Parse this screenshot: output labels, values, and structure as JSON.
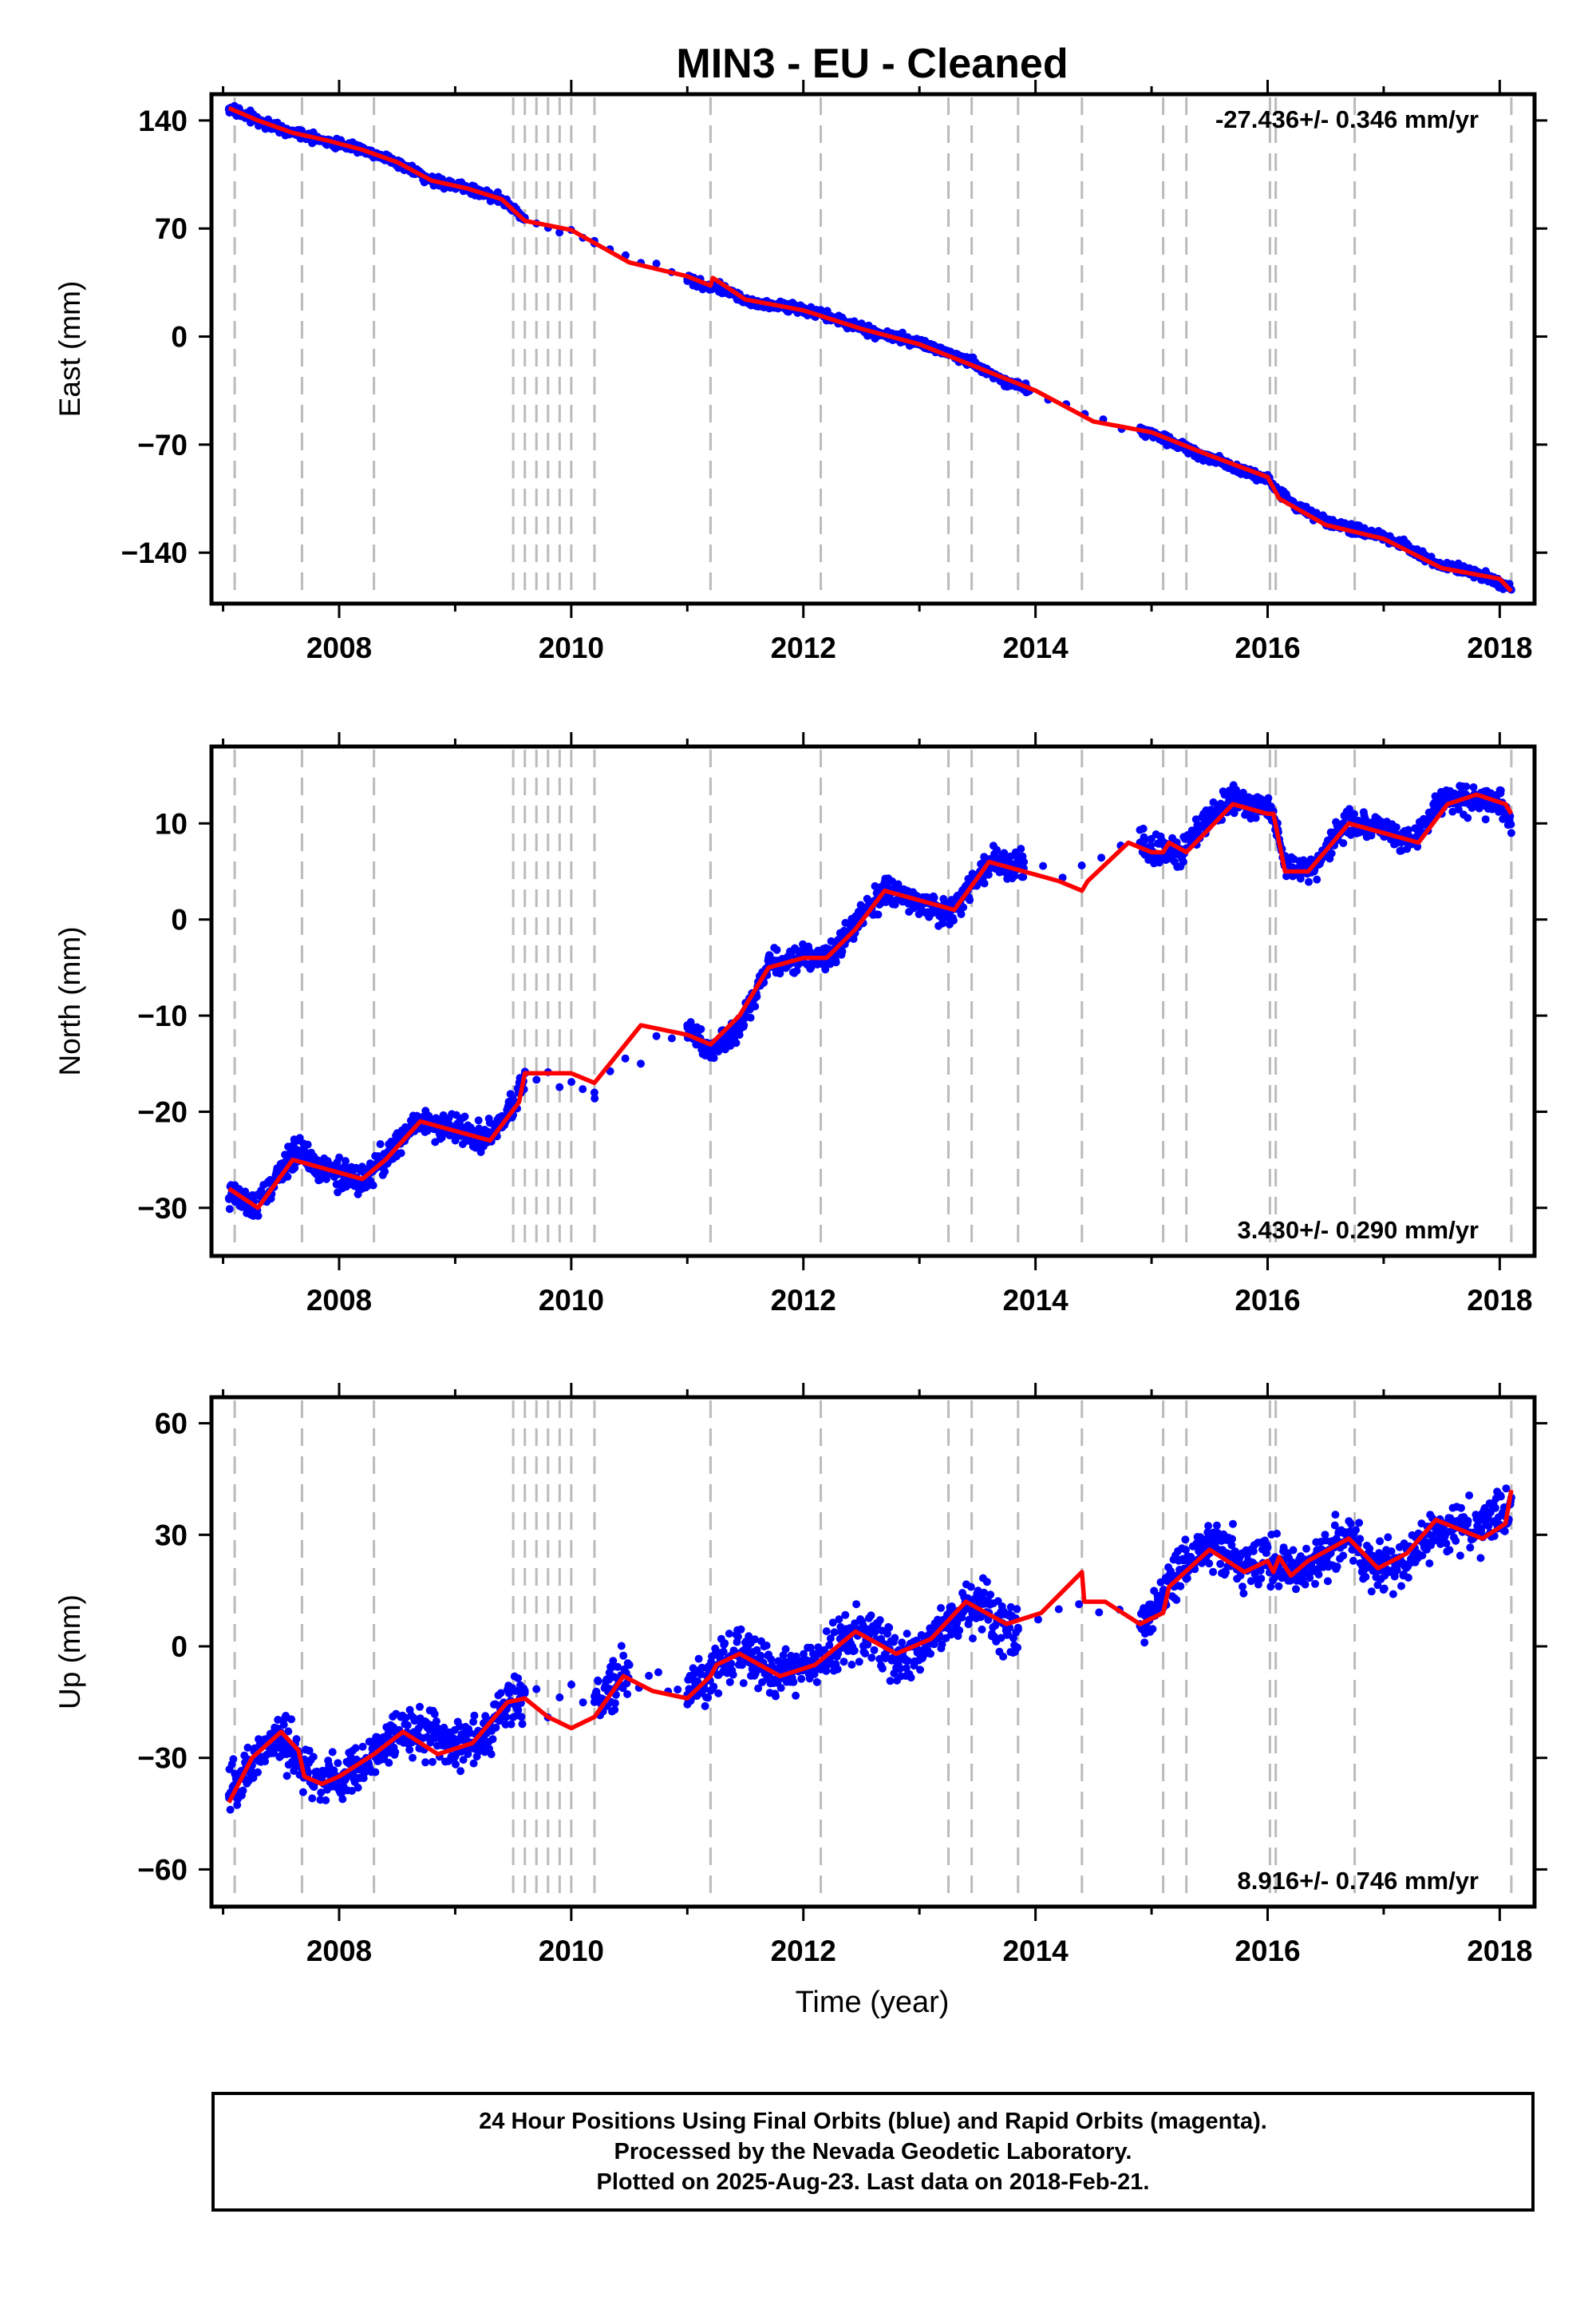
{
  "title": "MIN3  - EU - Cleaned",
  "xlabel": "Time (year)",
  "footer": [
    "24 Hour Positions Using Final Orbits (blue) and Rapid Orbits (magenta).",
    "Processed by the Nevada Geodetic Laboratory.",
    "Plotted on 2025-Aug-23. Last data on 2018-Feb-21."
  ],
  "colors": {
    "points": "#0000ff",
    "model": "#ff0000",
    "events": "#bbbbbb"
  },
  "chart_data": [
    {
      "type": "scatter",
      "ylabel": "East (mm)",
      "xlim": [
        2006.9,
        2018.3
      ],
      "ylim": [
        -173,
        157
      ],
      "yticks": [
        140,
        70,
        0,
        -70,
        -140
      ],
      "yticklabels": [
        "140",
        "70",
        "0",
        "−70",
        "−140"
      ],
      "xticks": [
        2008,
        2010,
        2012,
        2014,
        2016,
        2018
      ],
      "xticklabels": [
        "2008",
        "2010",
        "2012",
        "2014",
        "2016",
        "2018"
      ],
      "rate": "-27.436+/- 0.346 mm/yr",
      "rate_position": "top-right",
      "grid": false,
      "series": [
        {
          "kind": "points",
          "x": [
            2007.05,
            2007.3,
            2007.6,
            2007.9,
            2008.2,
            2008.5,
            2008.8,
            2009.1,
            2009.4,
            2009.6,
            2010.2,
            2011.0,
            2011.3,
            2011.6,
            2011.9,
            2012.2,
            2012.5,
            2012.8,
            2013.1,
            2013.4,
            2013.7,
            2013.95,
            2014.9,
            2015.2,
            2015.5,
            2015.8,
            2016.0,
            2016.3,
            2016.6,
            2016.9,
            2017.2,
            2017.5,
            2017.8,
            2018.1
          ],
          "y": [
            147,
            140,
            132,
            126,
            122,
            113,
            101,
            96,
            89,
            77,
            62,
            37,
            28,
            21,
            19,
            14,
            5,
            0,
            -5,
            -14,
            -29,
            -35,
            -60,
            -70,
            -80,
            -88,
            -92,
            -110,
            -122,
            -126,
            -134,
            -148,
            -152,
            -164
          ]
        },
        {
          "kind": "model",
          "x": [
            2007.05,
            2007.3,
            2007.6,
            2007.9,
            2008.2,
            2008.5,
            2008.8,
            2009.1,
            2009.4,
            2009.6,
            2010.0,
            2010.5,
            2011.0,
            2011.2,
            2011.22,
            2011.5,
            2012.0,
            2012.5,
            2013.0,
            2013.5,
            2014.0,
            2014.5,
            2015.0,
            2015.5,
            2016.0,
            2016.1,
            2016.5,
            2017.0,
            2017.5,
            2018.0,
            2018.1
          ],
          "y": [
            148,
            140,
            132,
            127,
            121,
            113,
            101,
            96,
            89,
            75,
            69,
            48,
            39,
            33,
            38,
            24,
            17,
            5,
            -5,
            -20,
            -35,
            -55,
            -62,
            -77,
            -91,
            -105,
            -122,
            -131,
            -150,
            -157,
            -165
          ]
        }
      ]
    },
    {
      "type": "scatter",
      "ylabel": "North (mm)",
      "xlim": [
        2006.9,
        2018.3
      ],
      "ylim": [
        -35,
        18
      ],
      "yticks": [
        10,
        0,
        -10,
        -20,
        -30
      ],
      "yticklabels": [
        "10",
        "0",
        "−10",
        "−20",
        "−30"
      ],
      "xticks": [
        2008,
        2010,
        2012,
        2014,
        2016,
        2018
      ],
      "xticklabels": [
        "2008",
        "2010",
        "2012",
        "2014",
        "2016",
        "2018"
      ],
      "rate": "3.430+/- 0.290 mm/yr",
      "rate_position": "bottom-right",
      "grid": false,
      "series": [
        {
          "kind": "points",
          "x": [
            2007.05,
            2007.25,
            2007.45,
            2007.65,
            2007.85,
            2008.05,
            2008.25,
            2008.45,
            2008.65,
            2008.85,
            2009.05,
            2009.25,
            2009.45,
            2009.6,
            2010.2,
            2011.0,
            2011.2,
            2011.45,
            2011.7,
            2011.95,
            2012.2,
            2012.45,
            2012.7,
            2012.95,
            2013.2,
            2013.45,
            2013.7,
            2013.9,
            2014.9,
            2015.2,
            2015.45,
            2015.7,
            2016.0,
            2016.15,
            2016.4,
            2016.65,
            2016.9,
            2017.15,
            2017.5,
            2017.75,
            2018.0,
            2018.1
          ],
          "y": [
            -29,
            -30,
            -27,
            -23,
            -26,
            -27,
            -27,
            -24,
            -21,
            -21,
            -22,
            -23,
            -20,
            -16,
            -18,
            -11,
            -14,
            -12,
            -4,
            -4,
            -4,
            0,
            3,
            2,
            0,
            4,
            6,
            6,
            8,
            6,
            11,
            13,
            12,
            6,
            5,
            10,
            10,
            8,
            13,
            12,
            12,
            9
          ]
        },
        {
          "kind": "model",
          "x": [
            2007.05,
            2007.3,
            2007.6,
            2007.9,
            2008.2,
            2008.4,
            2008.7,
            2009.0,
            2009.3,
            2009.55,
            2009.6,
            2010.0,
            2010.2,
            2010.6,
            2011.0,
            2011.2,
            2011.45,
            2011.7,
            2012.0,
            2012.2,
            2012.45,
            2012.7,
            2013.0,
            2013.3,
            2013.6,
            2013.9,
            2014.2,
            2014.4,
            2014.45,
            2014.8,
            2015.0,
            2015.1,
            2015.15,
            2015.3,
            2015.7,
            2016.0,
            2016.05,
            2016.15,
            2016.35,
            2016.7,
            2017.0,
            2017.3,
            2017.55,
            2017.8,
            2018.05,
            2018.1
          ],
          "y": [
            -28,
            -30,
            -25,
            -26,
            -27,
            -25,
            -21,
            -22,
            -23,
            -19,
            -16,
            -16,
            -17,
            -11,
            -12,
            -13,
            -10,
            -5,
            -4,
            -4,
            -1,
            3,
            2,
            1,
            6,
            5,
            4,
            3,
            4,
            8,
            7,
            7,
            8,
            7,
            12,
            11,
            11,
            5,
            5,
            10,
            9,
            8,
            12,
            13,
            12,
            11
          ]
        }
      ]
    },
    {
      "type": "scatter",
      "ylabel": "Up (mm)",
      "xlim": [
        2006.9,
        2018.3
      ],
      "ylim": [
        -70,
        67
      ],
      "yticks": [
        60,
        30,
        0,
        -30,
        -60
      ],
      "yticklabels": [
        "60",
        "30",
        "0",
        "−30",
        "−60"
      ],
      "xticks": [
        2008,
        2010,
        2012,
        2014,
        2016,
        2018
      ],
      "xticklabels": [
        "2008",
        "2010",
        "2012",
        "2014",
        "2016",
        "2018"
      ],
      "rate": "8.916+/- 0.746 mm/yr",
      "rate_position": "bottom-right",
      "grid": false,
      "series": [
        {
          "kind": "points",
          "x": [
            2007.05,
            2007.25,
            2007.45,
            2007.65,
            2007.85,
            2008.05,
            2008.25,
            2008.45,
            2008.65,
            2008.85,
            2009.05,
            2009.25,
            2009.45,
            2009.6,
            2010.2,
            2010.5,
            2011.0,
            2011.2,
            2011.4,
            2011.6,
            2011.8,
            2012.0,
            2012.2,
            2012.4,
            2012.6,
            2012.8,
            2013.0,
            2013.2,
            2013.4,
            2013.6,
            2013.85,
            2014.9,
            2015.1,
            2015.3,
            2015.5,
            2015.7,
            2015.9,
            2016.1,
            2016.3,
            2016.5,
            2016.7,
            2016.9,
            2017.1,
            2017.5,
            2017.7,
            2017.9,
            2018.1
          ],
          "y": [
            -40,
            -32,
            -26,
            -30,
            -36,
            -36,
            -32,
            -25,
            -20,
            -22,
            -28,
            -24,
            -16,
            -12,
            -15,
            -5,
            -13,
            -6,
            -2,
            -4,
            -8,
            -5,
            -3,
            3,
            4,
            -4,
            -2,
            5,
            10,
            9,
            5,
            6,
            15,
            23,
            28,
            25,
            20,
            22,
            18,
            24,
            30,
            22,
            20,
            30,
            32,
            35,
            40
          ]
        },
        {
          "kind": "model",
          "x": [
            2007.05,
            2007.25,
            2007.5,
            2007.65,
            2007.7,
            2007.85,
            2008.0,
            2008.3,
            2008.55,
            2008.85,
            2009.15,
            2009.45,
            2009.6,
            2009.8,
            2010.0,
            2010.2,
            2010.45,
            2010.7,
            2011.0,
            2011.2,
            2011.25,
            2011.45,
            2011.8,
            2012.1,
            2012.45,
            2012.8,
            2013.1,
            2013.4,
            2013.75,
            2014.05,
            2014.4,
            2014.42,
            2014.6,
            2014.9,
            2015.1,
            2015.15,
            2015.5,
            2015.8,
            2016.0,
            2016.05,
            2016.1,
            2016.2,
            2016.35,
            2016.7,
            2016.95,
            2017.2,
            2017.45,
            2017.85,
            2018.05,
            2018.1
          ],
          "y": [
            -42,
            -30,
            -23,
            -28,
            -35,
            -37,
            -35,
            -29,
            -23,
            -29,
            -26,
            -15,
            -14,
            -19,
            -22,
            -19,
            -8,
            -12,
            -14,
            -8,
            -5,
            -2,
            -8,
            -5,
            4,
            -2,
            2,
            12,
            6,
            9,
            20,
            12,
            12,
            6,
            9,
            16,
            26,
            20,
            23,
            20,
            24,
            19,
            23,
            29,
            21,
            25,
            34,
            29,
            33,
            42
          ]
        }
      ]
    }
  ]
}
